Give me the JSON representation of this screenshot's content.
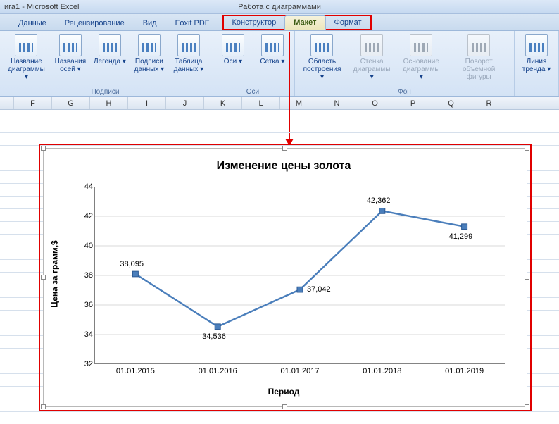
{
  "window": {
    "title_left": "ига1 - Microsoft Excel",
    "title_center": "Работа с диаграммами"
  },
  "tabs": {
    "main": [
      "Данные",
      "Рецензирование",
      "Вид",
      "Foxit PDF"
    ],
    "context": [
      {
        "label": "Конструктор",
        "active": false
      },
      {
        "label": "Макет",
        "active": true
      },
      {
        "label": "Формат",
        "active": false
      }
    ]
  },
  "ribbon": {
    "groups": [
      {
        "label": "Подписи",
        "buttons": [
          {
            "label": "Название\nдиаграммы",
            "dd": true
          },
          {
            "label": "Названия\nосей",
            "dd": true
          },
          {
            "label": "Легенда",
            "dd": true
          },
          {
            "label": "Подписи\nданных",
            "dd": true
          },
          {
            "label": "Таблица\nданных",
            "dd": true
          }
        ]
      },
      {
        "label": "Оси",
        "buttons": [
          {
            "label": "Оси",
            "dd": true
          },
          {
            "label": "Сетка",
            "dd": true
          }
        ]
      },
      {
        "label": "Фон",
        "buttons": [
          {
            "label": "Область\nпостроения",
            "dd": true
          },
          {
            "label": "Стенка\nдиаграммы",
            "dd": true,
            "greyed": true
          },
          {
            "label": "Основание\nдиаграммы",
            "dd": true,
            "greyed": true
          },
          {
            "label": "Поворот\nобъемной фигуры",
            "greyed": true
          }
        ]
      },
      {
        "label": "",
        "buttons": [
          {
            "label": "Линия\nтренда",
            "dd": true
          }
        ]
      }
    ]
  },
  "columns": [
    "F",
    "G",
    "H",
    "I",
    "J",
    "K",
    "L",
    "M",
    "N",
    "O",
    "P",
    "Q",
    "R"
  ],
  "chart": {
    "title": "Изменение цены золота",
    "ylabel": "Цена за грамм,$",
    "xlabel": "Период",
    "ymin": 32,
    "ymax": 44,
    "ystep": 2,
    "line_color": "#4a7ebb",
    "marker_color": "#4a7ebb",
    "marker_border": "#2c5a94",
    "grid_color": "#d9d9d9",
    "axis_color": "#808080",
    "background": "#ffffff",
    "points": [
      {
        "x": "01.01.2015",
        "y": 38.095,
        "label": "38,095",
        "lpos": "above"
      },
      {
        "x": "01.01.2016",
        "y": 34.536,
        "label": "34,536",
        "lpos": "below"
      },
      {
        "x": "01.01.2017",
        "y": 37.042,
        "label": "37,042",
        "lpos": "right"
      },
      {
        "x": "01.01.2018",
        "y": 42.362,
        "label": "42,362",
        "lpos": "above"
      },
      {
        "x": "01.01.2019",
        "y": 41.299,
        "label": "41,299",
        "lpos": "below"
      }
    ]
  }
}
